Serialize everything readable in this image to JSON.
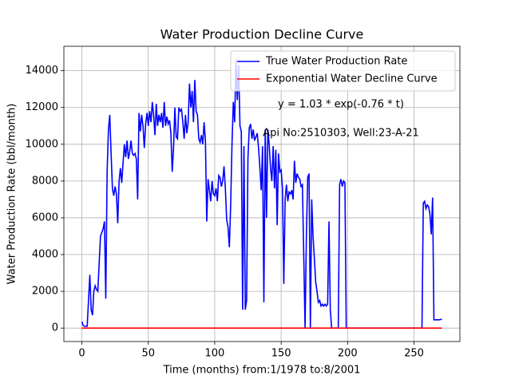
{
  "chart_data": {
    "type": "line",
    "title": "Water Production Decline Curve",
    "xlabel": "Time (months) from:1/1978 to:8/2001",
    "ylabel": "Water Production Rate (bbl/month)",
    "annotations": [
      "y = 1.03 * exp(-0.76 * t)",
      "Api No:2510303, Well:23-A-21"
    ],
    "xlim": [
      -13.55,
      284.55
    ],
    "ylim": [
      -730,
      15330
    ],
    "xticks": [
      0,
      50,
      100,
      150,
      200,
      250
    ],
    "yticks": [
      0,
      2000,
      4000,
      6000,
      8000,
      10000,
      12000,
      14000
    ],
    "grid": true,
    "legend": "upper right",
    "series": [
      {
        "name": "True Water Production Rate",
        "color": "#0000ff",
        "x": [
          0,
          1,
          2,
          3,
          4,
          5,
          6,
          7,
          8,
          9,
          10,
          11,
          12,
          13,
          14,
          15,
          16,
          17,
          18,
          19,
          20,
          21,
          22,
          23,
          24,
          25,
          26,
          27,
          28,
          29,
          30,
          31,
          32,
          33,
          34,
          35,
          36,
          37,
          38,
          39,
          40,
          41,
          42,
          43,
          44,
          45,
          46,
          47,
          48,
          49,
          50,
          51,
          52,
          53,
          54,
          55,
          56,
          57,
          58,
          59,
          60,
          61,
          62,
          63,
          64,
          65,
          66,
          67,
          68,
          69,
          70,
          71,
          72,
          73,
          74,
          75,
          76,
          77,
          78,
          79,
          80,
          81,
          82,
          83,
          84,
          85,
          86,
          87,
          88,
          89,
          90,
          91,
          92,
          93,
          94,
          95,
          96,
          97,
          98,
          99,
          100,
          101,
          102,
          103,
          104,
          105,
          106,
          107,
          108,
          109,
          110,
          111,
          112,
          113,
          114,
          115,
          116,
          117,
          118,
          119,
          120,
          121,
          122,
          123,
          124,
          125,
          126,
          127,
          128,
          129,
          130,
          131,
          132,
          133,
          134,
          135,
          136,
          137,
          138,
          139,
          140,
          141,
          142,
          143,
          144,
          145,
          146,
          147,
          148,
          149,
          150,
          151,
          152,
          153,
          154,
          155,
          156,
          157,
          158,
          159,
          160,
          161,
          162,
          163,
          164,
          165,
          166,
          167,
          168,
          169,
          170,
          171,
          172,
          173,
          174,
          175,
          176,
          177,
          178,
          179,
          180,
          181,
          182,
          183,
          184,
          185,
          186,
          187,
          188,
          193,
          194,
          195,
          196,
          197,
          198,
          199,
          256,
          257,
          258,
          259,
          260,
          261,
          262,
          263,
          264,
          265,
          266,
          267,
          268,
          269,
          270,
          271
        ],
        "values": [
          350,
          150,
          100,
          100,
          100,
          1500,
          2900,
          1000,
          700,
          2000,
          2300,
          2100,
          2000,
          3500,
          5000,
          5200,
          5400,
          5800,
          1600,
          8500,
          10800,
          11600,
          9500,
          7600,
          7200,
          7700,
          7300,
          5700,
          8000,
          8700,
          7900,
          9000,
          10000,
          9300,
          10200,
          9200,
          9600,
          10200,
          9500,
          9400,
          9500,
          9200,
          7000,
          11700,
          10700,
          11600,
          11000,
          9800,
          11100,
          11700,
          11000,
          11800,
          11200,
          12300,
          11600,
          10500,
          12200,
          11000,
          11600,
          11200,
          11700,
          10900,
          12300,
          11000,
          11500,
          11100,
          11300,
          10600,
          8500,
          9800,
          12000,
          10400,
          10300,
          12000,
          11800,
          11900,
          11200,
          10300,
          11600,
          10600,
          11200,
          13300,
          12000,
          12900,
          11200,
          13500,
          11800,
          11600,
          10300,
          10100,
          10500,
          10000,
          11200,
          10200,
          5800,
          8100,
          7500,
          6900,
          8000,
          7300,
          7200,
          7600,
          6900,
          8300,
          8200,
          7700,
          8000,
          8800,
          7600,
          5900,
          5500,
          4400,
          6700,
          10000,
          12300,
          11200,
          14600,
          12400,
          14300,
          11000,
          10700,
          1000,
          9900,
          1000,
          1500,
          9200,
          10900,
          11100,
          10300,
          10800,
          10200,
          10400,
          10600,
          9800,
          8700,
          7500,
          9900,
          1400,
          10800,
          6000,
          10800,
          10000,
          8700,
          8000,
          9900,
          7600,
          9700,
          5600,
          9500,
          8500,
          8600,
          7600,
          2400,
          7000,
          7800,
          6900,
          7400,
          7300,
          7500,
          7000,
          9100,
          7900,
          8400,
          8200,
          8100,
          7700,
          7800,
          4000,
          0,
          5000,
          8200,
          8400,
          0,
          7000,
          5000,
          3800,
          2500,
          2000,
          1400,
          1500,
          1200,
          1300,
          1200,
          1300,
          1200,
          1300,
          5800,
          1000,
          0,
          0,
          7800,
          8100,
          7700,
          8000,
          7900,
          0,
          0,
          6800,
          6900,
          6500,
          6700,
          6600,
          6200,
          5100,
          7100,
          450,
          450,
          450,
          450,
          450,
          470,
          470
        ]
      },
      {
        "name": "Exponential Water Decline Curve",
        "color": "#ff0000",
        "x": [
          0,
          271
        ],
        "values": [
          1.03,
          0
        ]
      }
    ]
  }
}
